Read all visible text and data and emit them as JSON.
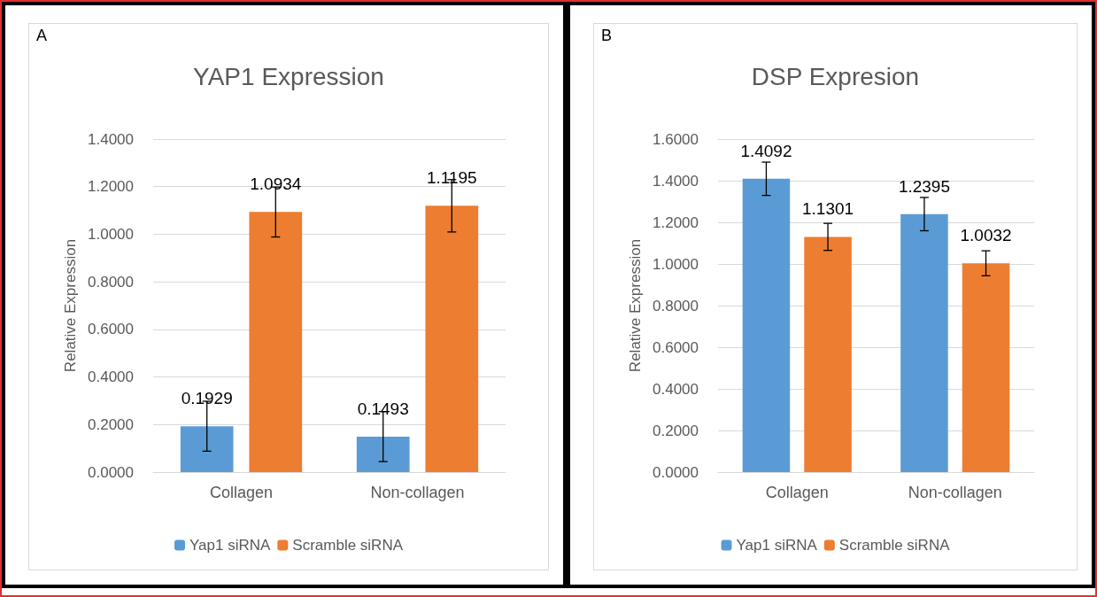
{
  "chart_data": [
    {
      "type": "bar",
      "title": "YAP1 Expression",
      "ylabel": "Relative Expression",
      "annotations": [
        "A"
      ],
      "categories": [
        "Collagen",
        "Non-collagen"
      ],
      "series": [
        {
          "name": "Yap1 siRNA",
          "color": "#5b9bd5",
          "values": [
            0.1929,
            0.1493
          ],
          "errors": [
            0.105,
            0.105
          ]
        },
        {
          "name": "Scramble siRNA",
          "color": "#ed7d31",
          "values": [
            1.0934,
            1.1195
          ],
          "errors": [
            0.105,
            0.11
          ]
        }
      ],
      "ylim": [
        0,
        1.4
      ],
      "yticks": [
        {
          "value": 0,
          "label": "0.0000"
        },
        {
          "value": 0.2,
          "label": "0.2000"
        },
        {
          "value": 0.4,
          "label": "0.4000"
        },
        {
          "value": 0.6,
          "label": "0.6000"
        },
        {
          "value": 0.8,
          "label": "0.8000"
        },
        {
          "value": 1,
          "label": "1.0000"
        },
        {
          "value": 1.2,
          "label": "1.2000"
        },
        {
          "value": 1.4,
          "label": "1.4000"
        }
      ],
      "grid": "y",
      "legend": "bottom",
      "data_labels": true
    },
    {
      "type": "bar",
      "title": "DSP Expresion",
      "ylabel": "Relative Expression",
      "annotations": [
        "B"
      ],
      "categories": [
        "Collagen",
        "Non-collagen"
      ],
      "series": [
        {
          "name": "Yap1 siRNA",
          "color": "#5b9bd5",
          "values": [
            1.4092,
            1.2395
          ],
          "errors": [
            0.08,
            0.08
          ]
        },
        {
          "name": "Scramble siRNA",
          "color": "#ed7d31",
          "values": [
            1.1301,
            1.0032
          ],
          "errors": [
            0.065,
            0.06
          ]
        }
      ],
      "ylim": [
        0,
        1.6
      ],
      "yticks": [
        {
          "value": 0,
          "label": "0.0000"
        },
        {
          "value": 0.2,
          "label": "0.2000"
        },
        {
          "value": 0.4,
          "label": "0.4000"
        },
        {
          "value": 0.6,
          "label": "0.6000"
        },
        {
          "value": 0.8,
          "label": "0.8000"
        },
        {
          "value": 1,
          "label": "1.0000"
        },
        {
          "value": 1.2,
          "label": "1.2000"
        },
        {
          "value": 1.4,
          "label": "1.4000"
        },
        {
          "value": 1.6,
          "label": "1.6000"
        }
      ],
      "grid": "y",
      "legend": "bottom",
      "data_labels": true
    }
  ]
}
